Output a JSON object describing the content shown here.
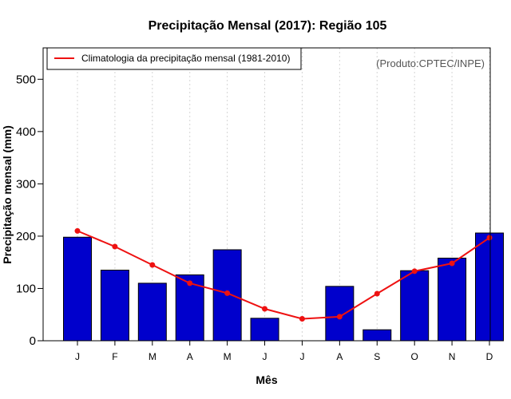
{
  "chart_data": {
    "type": "bar",
    "title": "Precipitação Mensal (2017): Região 105",
    "xlabel": "Mês",
    "ylabel": "Precipitação mensal (mm)",
    "categories": [
      "J",
      "F",
      "M",
      "A",
      "M",
      "J",
      "J",
      "A",
      "S",
      "O",
      "N",
      "D"
    ],
    "ylim": [
      0,
      560
    ],
    "yticks": [
      0,
      100,
      200,
      300,
      400,
      500
    ],
    "grid": "vertical-dotted",
    "series": [
      {
        "name": "Precipitação mensal 2017",
        "type": "bar",
        "color": "#0000cc",
        "values": [
          198,
          135,
          110,
          126,
          174,
          43,
          0,
          104,
          21,
          134,
          158,
          206
        ]
      },
      {
        "name": "Climatologia da precipitação mensal (1981-2010)",
        "type": "line",
        "color": "#ee1111",
        "values": [
          210,
          180,
          145,
          110,
          91,
          61,
          42,
          46,
          90,
          133,
          148,
          197
        ]
      }
    ],
    "legend": {
      "position": "top-left",
      "label": "Climatologia da precipitação mensal (1981-2010)"
    },
    "annotation": "(Produto:CPTEC/INPE)"
  }
}
